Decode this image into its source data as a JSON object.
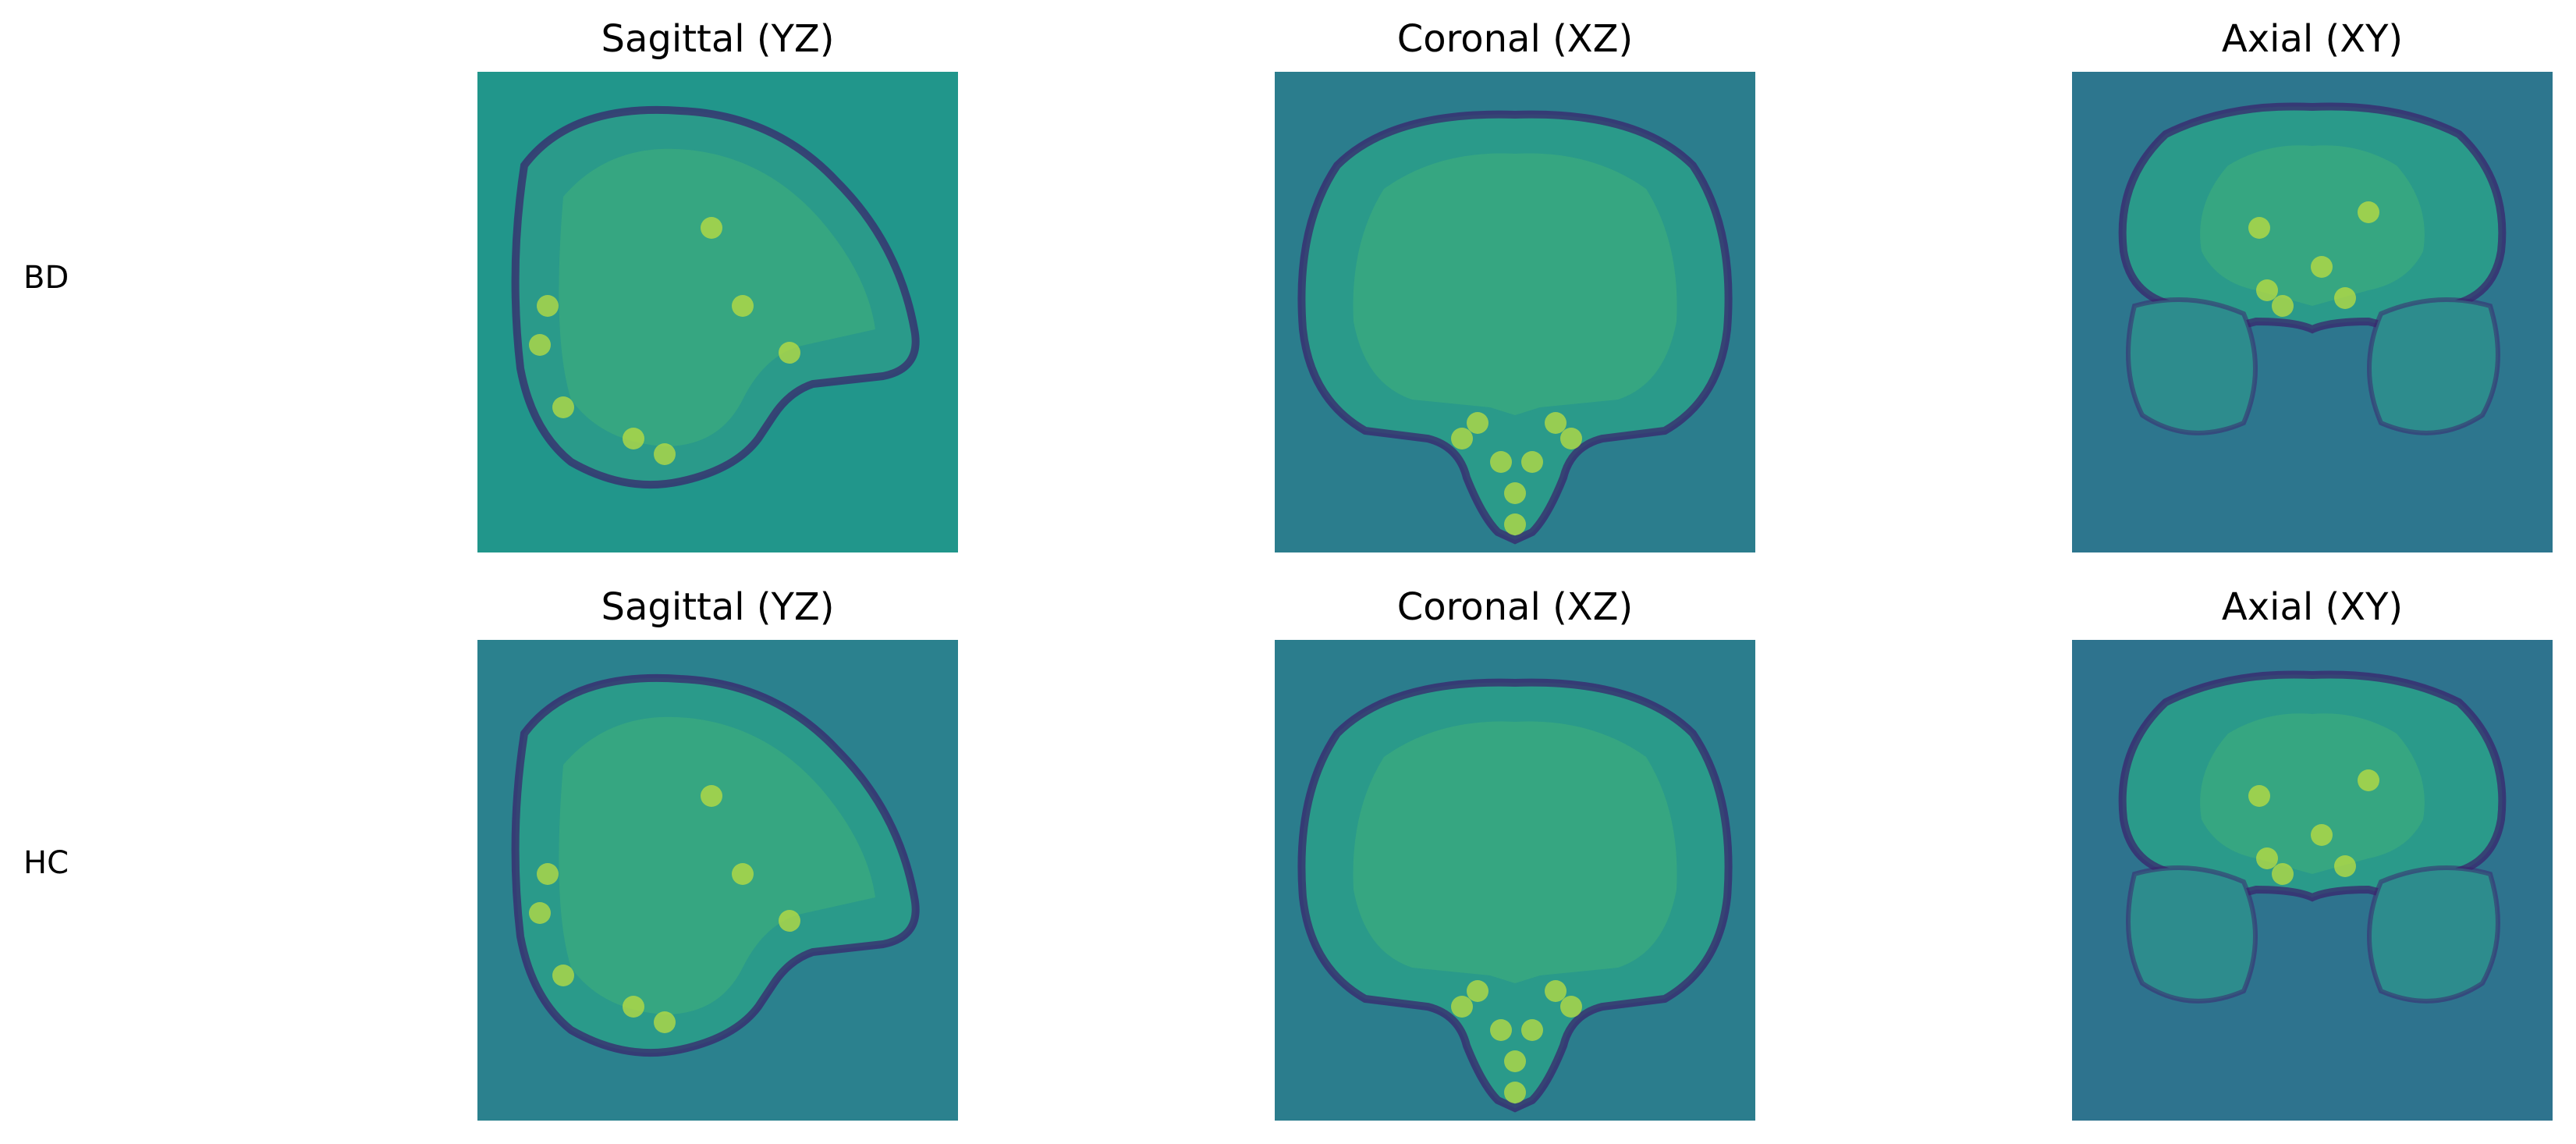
{
  "rows": [
    {
      "label": "BD",
      "panels": [
        {
          "title": "Sagittal (YZ)",
          "view": "sagittal",
          "background": "#21968b"
        },
        {
          "title": "Coronal (XZ)",
          "view": "coronal",
          "background": "#2b7d8d"
        },
        {
          "title": "Axial (XY)",
          "view": "axial",
          "background": "#2d768e"
        }
      ]
    },
    {
      "label": "HC",
      "panels": [
        {
          "title": "Sagittal (YZ)",
          "view": "sagittal",
          "background": "#2b818e"
        },
        {
          "title": "Coronal (XZ)",
          "view": "coronal",
          "background": "#2b7d8d"
        },
        {
          "title": "Axial (XY)",
          "view": "axial",
          "background": "#2e738e"
        }
      ]
    }
  ],
  "colormap": "viridis",
  "colors": {
    "dark_edge": "#3b1f6b",
    "mid_tissue": "#2a9a8a",
    "bright_spot": "#c6e23a"
  }
}
